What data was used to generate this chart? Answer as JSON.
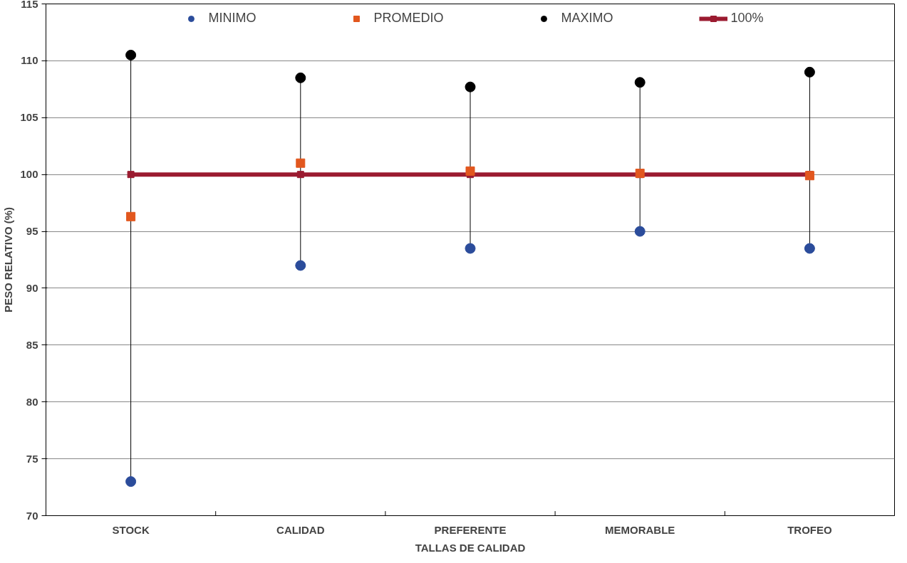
{
  "chart_data": {
    "type": "scatter",
    "xlabel": "TALLAS DE CALIDAD",
    "ylabel": "PESO RELATIVO (%)",
    "categories": [
      "STOCK",
      "CALIDAD",
      "PREFERENTE",
      "MEMORABLE",
      "TROFEO"
    ],
    "series": [
      {
        "name": "MINIMO",
        "color": "#2b4c9b",
        "marker": "circle",
        "values": [
          73,
          92,
          93.5,
          95,
          93.5
        ]
      },
      {
        "name": "PROMEDIO",
        "color": "#e2571e",
        "marker": "square",
        "values": [
          96.3,
          101,
          100.3,
          100.1,
          99.9
        ]
      },
      {
        "name": "MAXIMO",
        "color": "#000000",
        "marker": "circle",
        "values": [
          110.5,
          108.5,
          107.7,
          108.1,
          109
        ]
      },
      {
        "name": "100%",
        "type": "line",
        "color": "#9b1b30",
        "marker": "square",
        "values": [
          100,
          100,
          100,
          100,
          100
        ]
      }
    ],
    "ylim": [
      70,
      115
    ],
    "yticks": [
      70,
      75,
      80,
      85,
      90,
      95,
      100,
      105,
      110,
      115
    ],
    "grid": "y",
    "legend": "top"
  }
}
